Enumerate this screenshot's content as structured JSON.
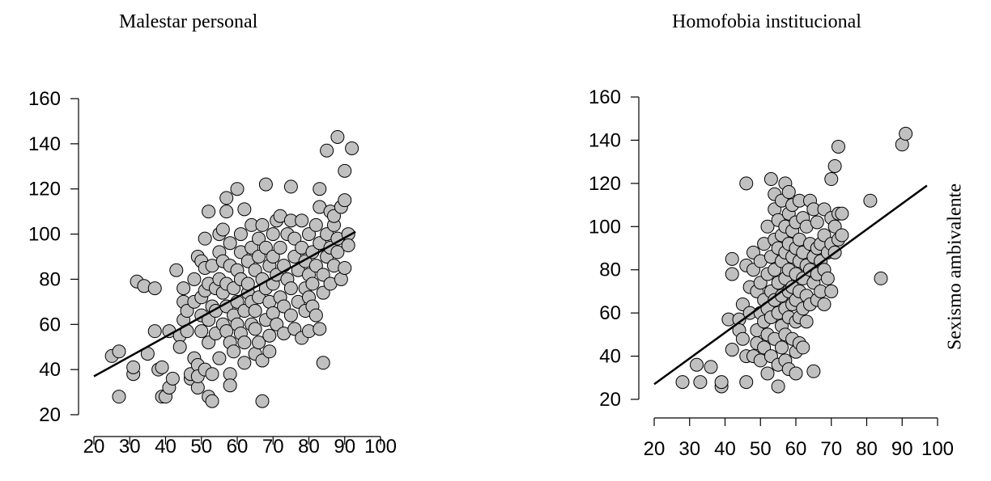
{
  "chart_data": [
    {
      "type": "scatter",
      "title": "Malestar personal",
      "xlabel": "",
      "ylabel": "",
      "xlim": [
        20,
        100
      ],
      "ylim": [
        20,
        160
      ],
      "xticks": [
        20,
        30,
        40,
        50,
        60,
        70,
        80,
        90,
        100
      ],
      "yticks": [
        20,
        40,
        60,
        80,
        100,
        120,
        140,
        160
      ],
      "regression_line": {
        "x": [
          20,
          93
        ],
        "y": [
          37,
          101
        ]
      },
      "marker_color": "#c0c0c0",
      "points": [
        [
          25,
          46
        ],
        [
          27,
          48
        ],
        [
          27,
          28
        ],
        [
          31,
          38
        ],
        [
          31,
          41
        ],
        [
          32,
          79
        ],
        [
          34,
          77
        ],
        [
          35,
          47
        ],
        [
          37,
          76
        ],
        [
          37,
          57
        ],
        [
          38,
          40
        ],
        [
          39,
          41
        ],
        [
          39,
          28
        ],
        [
          40,
          28
        ],
        [
          41,
          32
        ],
        [
          41,
          57
        ],
        [
          42,
          36
        ],
        [
          43,
          84
        ],
        [
          44,
          55
        ],
        [
          44,
          50
        ],
        [
          45,
          62
        ],
        [
          45,
          70
        ],
        [
          45,
          76
        ],
        [
          46,
          57
        ],
        [
          46,
          66
        ],
        [
          47,
          36
        ],
        [
          47,
          38
        ],
        [
          48,
          80
        ],
        [
          48,
          70
        ],
        [
          48,
          45
        ],
        [
          49,
          42
        ],
        [
          49,
          32
        ],
        [
          49,
          37
        ],
        [
          49,
          90
        ],
        [
          50,
          88
        ],
        [
          50,
          72
        ],
        [
          50,
          64
        ],
        [
          50,
          57
        ],
        [
          51,
          40
        ],
        [
          51,
          98
        ],
        [
          51,
          75
        ],
        [
          51,
          85
        ],
        [
          52,
          28
        ],
        [
          52,
          110
        ],
        [
          52,
          78
        ],
        [
          52,
          62
        ],
        [
          52,
          52
        ],
        [
          53,
          26
        ],
        [
          53,
          38
        ],
        [
          53,
          68
        ],
        [
          53,
          86
        ],
        [
          54,
          56
        ],
        [
          54,
          76
        ],
        [
          54,
          66
        ],
        [
          55,
          92
        ],
        [
          55,
          80
        ],
        [
          55,
          45
        ],
        [
          55,
          100
        ],
        [
          56,
          60
        ],
        [
          56,
          74
        ],
        [
          56,
          102
        ],
        [
          56,
          88
        ],
        [
          57,
          57
        ],
        [
          57,
          78
        ],
        [
          57,
          68
        ],
        [
          57,
          116
        ],
        [
          57,
          110
        ],
        [
          58,
          52
        ],
        [
          58,
          96
        ],
        [
          58,
          86
        ],
        [
          58,
          38
        ],
        [
          58,
          33
        ],
        [
          59,
          64
        ],
        [
          59,
          76
        ],
        [
          59,
          48
        ],
        [
          60,
          120
        ],
        [
          60,
          84
        ],
        [
          60,
          70
        ],
        [
          60,
          60
        ],
        [
          61,
          56
        ],
        [
          61,
          80
        ],
        [
          61,
          100
        ],
        [
          61,
          92
        ],
        [
          62,
          111
        ],
        [
          62,
          66
        ],
        [
          62,
          52
        ],
        [
          62,
          43
        ],
        [
          63,
          74
        ],
        [
          63,
          88
        ],
        [
          63,
          78
        ],
        [
          64,
          60
        ],
        [
          64,
          104
        ],
        [
          64,
          94
        ],
        [
          64,
          70
        ],
        [
          65,
          58
        ],
        [
          65,
          84
        ],
        [
          65,
          47
        ],
        [
          65,
          66
        ],
        [
          66,
          72
        ],
        [
          66,
          98
        ],
        [
          66,
          90
        ],
        [
          66,
          52
        ],
        [
          67,
          26
        ],
        [
          67,
          104
        ],
        [
          67,
          80
        ],
        [
          67,
          44
        ],
        [
          68,
          122
        ],
        [
          68,
          62
        ],
        [
          68,
          76
        ],
        [
          68,
          94
        ],
        [
          69,
          86
        ],
        [
          69,
          70
        ],
        [
          69,
          55
        ],
        [
          69,
          48
        ],
        [
          70,
          100
        ],
        [
          70,
          65
        ],
        [
          70,
          90
        ],
        [
          70,
          78
        ],
        [
          71,
          106
        ],
        [
          71,
          82
        ],
        [
          71,
          60
        ],
        [
          72,
          108
        ],
        [
          72,
          72
        ],
        [
          72,
          94
        ],
        [
          73,
          56
        ],
        [
          73,
          86
        ],
        [
          73,
          68
        ],
        [
          74,
          100
        ],
        [
          74,
          80
        ],
        [
          75,
          121
        ],
        [
          75,
          106
        ],
        [
          75,
          64
        ],
        [
          75,
          76
        ],
        [
          76,
          90
        ],
        [
          76,
          98
        ],
        [
          76,
          58
        ],
        [
          77,
          70
        ],
        [
          77,
          84
        ],
        [
          78,
          106
        ],
        [
          78,
          54
        ],
        [
          78,
          94
        ],
        [
          79,
          76
        ],
        [
          79,
          66
        ],
        [
          79,
          88
        ],
        [
          80,
          82
        ],
        [
          80,
          100
        ],
        [
          80,
          72
        ],
        [
          80,
          57
        ],
        [
          81,
          68
        ],
        [
          81,
          78
        ],
        [
          81,
          92
        ],
        [
          82,
          104
        ],
        [
          82,
          64
        ],
        [
          82,
          86
        ],
        [
          83,
          58
        ],
        [
          83,
          112
        ],
        [
          83,
          120
        ],
        [
          83,
          96
        ],
        [
          84,
          43
        ],
        [
          84,
          74
        ],
        [
          84,
          82
        ],
        [
          85,
          137
        ],
        [
          85,
          90
        ],
        [
          85,
          100
        ],
        [
          86,
          110
        ],
        [
          86,
          78
        ],
        [
          86,
          94
        ],
        [
          87,
          104
        ],
        [
          87,
          86
        ],
        [
          87,
          108
        ],
        [
          88,
          143
        ],
        [
          88,
          92
        ],
        [
          88,
          98
        ],
        [
          89,
          80
        ],
        [
          89,
          112
        ],
        [
          90,
          128
        ],
        [
          90,
          115
        ],
        [
          90,
          85
        ],
        [
          91,
          100
        ],
        [
          91,
          95
        ],
        [
          92,
          138
        ]
      ]
    },
    {
      "type": "scatter",
      "title": "Homofobia institucional",
      "xlabel": "",
      "ylabel": "Sexismo ambivalente",
      "xlim": [
        20,
        100
      ],
      "ylim": [
        20,
        160
      ],
      "xticks": [
        20,
        30,
        40,
        50,
        60,
        70,
        80,
        90,
        100
      ],
      "yticks": [
        20,
        40,
        60,
        80,
        100,
        120,
        140,
        160
      ],
      "regression_line": {
        "x": [
          20,
          97
        ],
        "y": [
          27,
          119
        ]
      },
      "marker_color": "#c0c0c0",
      "points": [
        [
          28,
          28
        ],
        [
          32,
          36
        ],
        [
          33,
          28
        ],
        [
          36,
          35
        ],
        [
          39,
          26
        ],
        [
          39,
          28
        ],
        [
          41,
          57
        ],
        [
          42,
          43
        ],
        [
          42,
          85
        ],
        [
          42,
          78
        ],
        [
          44,
          57
        ],
        [
          44,
          52
        ],
        [
          45,
          48
        ],
        [
          45,
          64
        ],
        [
          46,
          28
        ],
        [
          46,
          120
        ],
        [
          46,
          82
        ],
        [
          46,
          40
        ],
        [
          47,
          72
        ],
        [
          47,
          60
        ],
        [
          48,
          80
        ],
        [
          48,
          88
        ],
        [
          48,
          40
        ],
        [
          49,
          70
        ],
        [
          49,
          52
        ],
        [
          49,
          46
        ],
        [
          50,
          74
        ],
        [
          50,
          84
        ],
        [
          50,
          60
        ],
        [
          50,
          38
        ],
        [
          51,
          92
        ],
        [
          51,
          66
        ],
        [
          51,
          56
        ],
        [
          51,
          44
        ],
        [
          52,
          100
        ],
        [
          52,
          78
        ],
        [
          52,
          62
        ],
        [
          52,
          50
        ],
        [
          52,
          32
        ],
        [
          53,
          122
        ],
        [
          53,
          86
        ],
        [
          53,
          70
        ],
        [
          53,
          58
        ],
        [
          53,
          40
        ],
        [
          54,
          115
        ],
        [
          54,
          108
        ],
        [
          54,
          94
        ],
        [
          54,
          80
        ],
        [
          54,
          66
        ],
        [
          54,
          48
        ],
        [
          55,
          103
        ],
        [
          55,
          90
        ],
        [
          55,
          74
        ],
        [
          55,
          60
        ],
        [
          55,
          26
        ],
        [
          55,
          36
        ],
        [
          56,
          112
        ],
        [
          56,
          96
        ],
        [
          56,
          84
        ],
        [
          56,
          68
        ],
        [
          56,
          54
        ],
        [
          56,
          44
        ],
        [
          57,
          120
        ],
        [
          57,
          100
        ],
        [
          57,
          88
        ],
        [
          57,
          76
        ],
        [
          57,
          62
        ],
        [
          57,
          50
        ],
        [
          57,
          38
        ],
        [
          58,
          116
        ],
        [
          58,
          106
        ],
        [
          58,
          92
        ],
        [
          58,
          80
        ],
        [
          58,
          70
        ],
        [
          58,
          58
        ],
        [
          58,
          34
        ],
        [
          59,
          110
        ],
        [
          59,
          98
        ],
        [
          59,
          86
        ],
        [
          59,
          72
        ],
        [
          59,
          64
        ],
        [
          59,
          48
        ],
        [
          60,
          102
        ],
        [
          60,
          90
        ],
        [
          60,
          78
        ],
        [
          60,
          66
        ],
        [
          60,
          56
        ],
        [
          60,
          42
        ],
        [
          60,
          32
        ],
        [
          61,
          112
        ],
        [
          61,
          94
        ],
        [
          61,
          84
        ],
        [
          61,
          70
        ],
        [
          61,
          58
        ],
        [
          61,
          46
        ],
        [
          62,
          104
        ],
        [
          62,
          88
        ],
        [
          62,
          76
        ],
        [
          62,
          62
        ],
        [
          62,
          44
        ],
        [
          63,
          100
        ],
        [
          63,
          82
        ],
        [
          63,
          68
        ],
        [
          63,
          56
        ],
        [
          64,
          112
        ],
        [
          64,
          92
        ],
        [
          64,
          80
        ],
        [
          64,
          64
        ],
        [
          65,
          108
        ],
        [
          65,
          86
        ],
        [
          65,
          74
        ],
        [
          65,
          33
        ],
        [
          66,
          102
        ],
        [
          66,
          90
        ],
        [
          66,
          78
        ],
        [
          66,
          66
        ],
        [
          67,
          92
        ],
        [
          67,
          84
        ],
        [
          67,
          70
        ],
        [
          68,
          108
        ],
        [
          68,
          96
        ],
        [
          68,
          80
        ],
        [
          68,
          64
        ],
        [
          69,
          88
        ],
        [
          69,
          76
        ],
        [
          70,
          122
        ],
        [
          70,
          104
        ],
        [
          70,
          92
        ],
        [
          70,
          70
        ],
        [
          71,
          128
        ],
        [
          71,
          100
        ],
        [
          71,
          88
        ],
        [
          72,
          137
        ],
        [
          72,
          106
        ],
        [
          72,
          94
        ],
        [
          73,
          106
        ],
        [
          73,
          96
        ],
        [
          81,
          112
        ],
        [
          84,
          76
        ],
        [
          90,
          138
        ],
        [
          91,
          143
        ]
      ]
    }
  ],
  "titles": {
    "left": "Malestar personal",
    "right": "Homofobia institucional",
    "right_ylabel": "Sexismo ambivalente"
  }
}
